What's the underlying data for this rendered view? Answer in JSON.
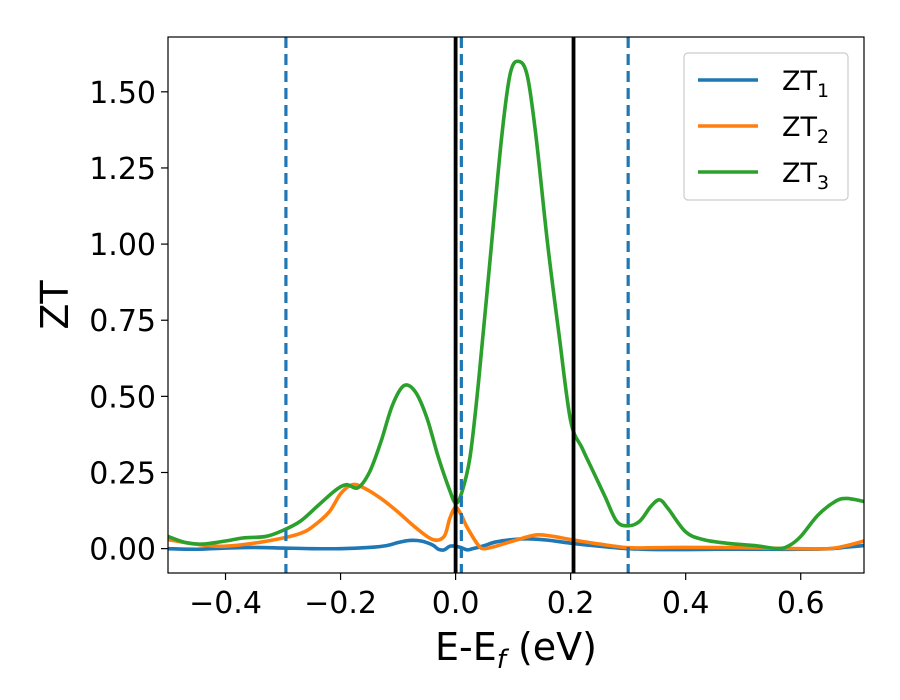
{
  "chart_data": {
    "type": "line",
    "xlabel": "E-E",
    "xlabel_sub": "f",
    "xlabel_unit": " (eV)",
    "ylabel": "ZT",
    "xlim": [
      -0.5,
      0.71
    ],
    "ylim": [
      -0.08,
      1.68
    ],
    "x_ticks": [
      -0.4,
      -0.2,
      0.0,
      0.2,
      0.4,
      0.6
    ],
    "x_tick_labels": [
      "−0.4",
      "−0.2",
      "0.0",
      "0.2",
      "0.4",
      "0.6"
    ],
    "y_ticks": [
      0.0,
      0.25,
      0.5,
      0.75,
      1.0,
      1.25,
      1.5
    ],
    "y_tick_labels": [
      "0.00",
      "0.25",
      "0.50",
      "0.75",
      "1.00",
      "1.25",
      "1.50"
    ],
    "grid": false,
    "legend_position": "top-right",
    "vertical_lines": [
      {
        "x": -0.295,
        "style": "dashed",
        "color": "#1f77b4"
      },
      {
        "x": 0.01,
        "style": "dashed",
        "color": "#1f77b4"
      },
      {
        "x": 0.3,
        "style": "dashed",
        "color": "#1f77b4"
      },
      {
        "x": 0.0,
        "style": "solid",
        "color": "#000000"
      },
      {
        "x": 0.205,
        "style": "solid",
        "color": "#000000"
      }
    ],
    "series": [
      {
        "name": "ZT",
        "subscript": "1",
        "color": "#1f77b4",
        "points": [
          [
            -0.5,
            0.0
          ],
          [
            -0.45,
            -0.002
          ],
          [
            -0.4,
            0.002
          ],
          [
            -0.35,
            0.004
          ],
          [
            -0.3,
            0.002
          ],
          [
            -0.25,
            0.0
          ],
          [
            -0.2,
            0.0
          ],
          [
            -0.15,
            0.004
          ],
          [
            -0.12,
            0.01
          ],
          [
            -0.1,
            0.02
          ],
          [
            -0.08,
            0.027
          ],
          [
            -0.06,
            0.025
          ],
          [
            -0.04,
            0.012
          ],
          [
            -0.03,
            -0.002
          ],
          [
            -0.02,
            -0.004
          ],
          [
            -0.01,
            0.008
          ],
          [
            0.0,
            0.008
          ],
          [
            0.01,
            0.003
          ],
          [
            0.02,
            -0.004
          ],
          [
            0.03,
            0.0
          ],
          [
            0.05,
            0.01
          ],
          [
            0.07,
            0.022
          ],
          [
            0.1,
            0.03
          ],
          [
            0.13,
            0.032
          ],
          [
            0.16,
            0.028
          ],
          [
            0.2,
            0.018
          ],
          [
            0.25,
            0.008
          ],
          [
            0.3,
            0.0
          ],
          [
            0.35,
            -0.003
          ],
          [
            0.4,
            -0.003
          ],
          [
            0.45,
            -0.002
          ],
          [
            0.5,
            -0.002
          ],
          [
            0.55,
            -0.002
          ],
          [
            0.6,
            -0.002
          ],
          [
            0.65,
            0.0
          ],
          [
            0.68,
            0.005
          ],
          [
            0.71,
            0.01
          ]
        ]
      },
      {
        "name": "ZT",
        "subscript": "2",
        "color": "#ff7f0e",
        "points": [
          [
            -0.5,
            0.03
          ],
          [
            -0.47,
            0.02
          ],
          [
            -0.43,
            0.01
          ],
          [
            -0.4,
            0.008
          ],
          [
            -0.35,
            0.018
          ],
          [
            -0.3,
            0.035
          ],
          [
            -0.27,
            0.05
          ],
          [
            -0.25,
            0.07
          ],
          [
            -0.22,
            0.12
          ],
          [
            -0.2,
            0.18
          ],
          [
            -0.18,
            0.21
          ],
          [
            -0.16,
            0.2
          ],
          [
            -0.13,
            0.165
          ],
          [
            -0.1,
            0.12
          ],
          [
            -0.07,
            0.07
          ],
          [
            -0.04,
            0.03
          ],
          [
            -0.02,
            0.04
          ],
          [
            -0.01,
            0.1
          ],
          [
            0.0,
            0.135
          ],
          [
            0.01,
            0.11
          ],
          [
            0.02,
            0.07
          ],
          [
            0.04,
            0.01
          ],
          [
            0.05,
            0.0
          ],
          [
            0.07,
            0.008
          ],
          [
            0.1,
            0.025
          ],
          [
            0.14,
            0.045
          ],
          [
            0.17,
            0.04
          ],
          [
            0.2,
            0.03
          ],
          [
            0.25,
            0.015
          ],
          [
            0.3,
            0.003
          ],
          [
            0.35,
            0.003
          ],
          [
            0.4,
            0.004
          ],
          [
            0.5,
            0.003
          ],
          [
            0.6,
            0.0
          ],
          [
            0.65,
            0.0
          ],
          [
            0.68,
            0.01
          ],
          [
            0.71,
            0.025
          ]
        ]
      },
      {
        "name": "ZT",
        "subscript": "3",
        "color": "#2ca02c",
        "points": [
          [
            -0.5,
            0.04
          ],
          [
            -0.47,
            0.02
          ],
          [
            -0.44,
            0.015
          ],
          [
            -0.4,
            0.025
          ],
          [
            -0.37,
            0.035
          ],
          [
            -0.33,
            0.04
          ],
          [
            -0.3,
            0.06
          ],
          [
            -0.27,
            0.09
          ],
          [
            -0.24,
            0.14
          ],
          [
            -0.21,
            0.19
          ],
          [
            -0.19,
            0.21
          ],
          [
            -0.17,
            0.2
          ],
          [
            -0.15,
            0.25
          ],
          [
            -0.13,
            0.35
          ],
          [
            -0.11,
            0.47
          ],
          [
            -0.09,
            0.535
          ],
          [
            -0.07,
            0.515
          ],
          [
            -0.05,
            0.43
          ],
          [
            -0.03,
            0.3
          ],
          [
            -0.01,
            0.19
          ],
          [
            0.0,
            0.15
          ],
          [
            0.01,
            0.18
          ],
          [
            0.025,
            0.3
          ],
          [
            0.04,
            0.55
          ],
          [
            0.06,
            0.95
          ],
          [
            0.08,
            1.35
          ],
          [
            0.095,
            1.56
          ],
          [
            0.11,
            1.6
          ],
          [
            0.125,
            1.55
          ],
          [
            0.14,
            1.35
          ],
          [
            0.16,
            1.0
          ],
          [
            0.18,
            0.7
          ],
          [
            0.2,
            0.42
          ],
          [
            0.22,
            0.33
          ],
          [
            0.24,
            0.25
          ],
          [
            0.26,
            0.17
          ],
          [
            0.28,
            0.09
          ],
          [
            0.3,
            0.075
          ],
          [
            0.32,
            0.09
          ],
          [
            0.34,
            0.14
          ],
          [
            0.355,
            0.16
          ],
          [
            0.37,
            0.13
          ],
          [
            0.4,
            0.055
          ],
          [
            0.43,
            0.03
          ],
          [
            0.47,
            0.018
          ],
          [
            0.52,
            0.01
          ],
          [
            0.56,
            0.0
          ],
          [
            0.58,
            0.01
          ],
          [
            0.6,
            0.04
          ],
          [
            0.63,
            0.11
          ],
          [
            0.66,
            0.155
          ],
          [
            0.68,
            0.165
          ],
          [
            0.71,
            0.155
          ]
        ]
      }
    ]
  }
}
